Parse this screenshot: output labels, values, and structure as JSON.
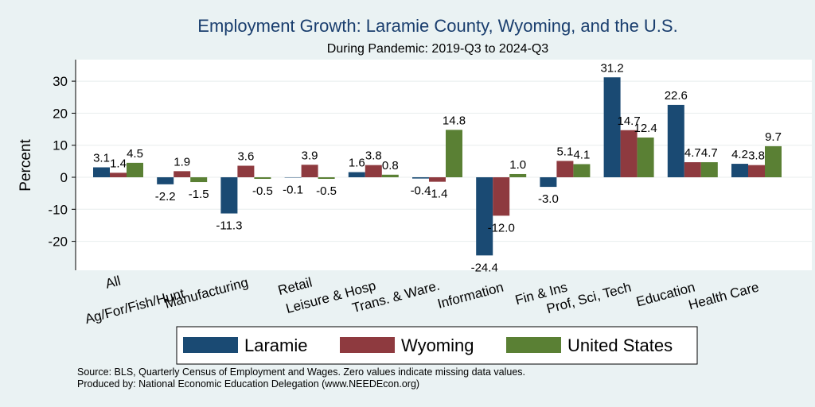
{
  "chart_data": {
    "type": "bar",
    "title": "Employment Growth: Laramie County, Wyoming, and the U.S.",
    "subtitle": "During Pandemic: 2019-Q3 to 2024-Q3",
    "ylabel": "Percent",
    "ylim": [
      -30,
      35
    ],
    "yticks": [
      -20,
      -10,
      0,
      10,
      20,
      30
    ],
    "grid": true,
    "categories": [
      "All",
      "Ag/For/Fish/Hunt",
      "Manufacturing",
      "Retail",
      "Leisure & Hosp",
      "Trans. & Ware.",
      "Information",
      "Fin & Ins",
      "Prof, Sci, Tech",
      "Education",
      "Health Care"
    ],
    "series": [
      {
        "name": "Laramie",
        "color": "#1a4a73",
        "values": [
          3.1,
          -2.2,
          -11.3,
          -0.1,
          1.6,
          -0.4,
          -24.4,
          -3.0,
          31.2,
          22.6,
          4.2
        ]
      },
      {
        "name": "Wyoming",
        "color": "#8e3a3f",
        "values": [
          1.4,
          1.9,
          3.6,
          3.9,
          3.8,
          -1.4,
          -12.0,
          5.1,
          14.7,
          4.7,
          3.8
        ]
      },
      {
        "name": "United States",
        "color": "#5a8034",
        "values": [
          4.5,
          -1.5,
          -0.5,
          -0.5,
          0.8,
          14.8,
          1.0,
          4.1,
          12.4,
          4.7,
          9.7
        ]
      }
    ],
    "legend_position": "bottom",
    "footnotes": [
      "Source: BLS, Quarterly Census of Employment and Wages. Zero values indicate missing data values.",
      "Produced by: National Economic Education Delegation (www.NEEDEcon.org)"
    ]
  }
}
